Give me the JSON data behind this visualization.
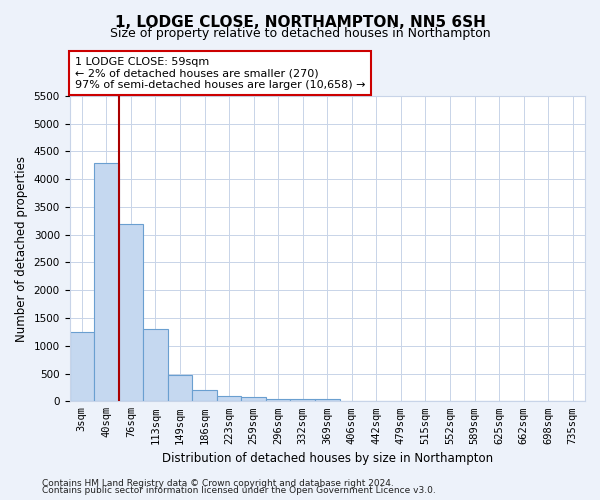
{
  "title": "1, LODGE CLOSE, NORTHAMPTON, NN5 6SH",
  "subtitle": "Size of property relative to detached houses in Northampton",
  "xlabel": "Distribution of detached houses by size in Northampton",
  "ylabel": "Number of detached properties",
  "categories": [
    "3sqm",
    "40sqm",
    "76sqm",
    "113sqm",
    "149sqm",
    "186sqm",
    "223sqm",
    "259sqm",
    "296sqm",
    "332sqm",
    "369sqm",
    "406sqm",
    "442sqm",
    "479sqm",
    "515sqm",
    "552sqm",
    "589sqm",
    "625sqm",
    "662sqm",
    "698sqm",
    "735sqm"
  ],
  "bar_values": [
    1250,
    4300,
    3200,
    1300,
    480,
    200,
    100,
    75,
    50,
    50,
    50,
    0,
    0,
    0,
    0,
    0,
    0,
    0,
    0,
    0,
    0
  ],
  "bar_color": "#c5d8f0",
  "bar_edge_color": "#6a9fd0",
  "marker_line_color": "#aa0000",
  "annotation_text": "1 LODGE CLOSE: 59sqm\n← 2% of detached houses are smaller (270)\n97% of semi-detached houses are larger (10,658) →",
  "annotation_box_color": "#ffffff",
  "annotation_box_edge_color": "#cc0000",
  "ylim": [
    0,
    5500
  ],
  "yticks": [
    0,
    500,
    1000,
    1500,
    2000,
    2500,
    3000,
    3500,
    4000,
    4500,
    5000,
    5500
  ],
  "footer_line1": "Contains HM Land Registry data © Crown copyright and database right 2024.",
  "footer_line2": "Contains public sector information licensed under the Open Government Licence v3.0.",
  "bg_color": "#edf2fa",
  "plot_bg_color": "#ffffff",
  "grid_color": "#c8d4e8",
  "title_fontsize": 11,
  "subtitle_fontsize": 9,
  "axis_label_fontsize": 8.5,
  "tick_fontsize": 7.5,
  "footer_fontsize": 6.5
}
